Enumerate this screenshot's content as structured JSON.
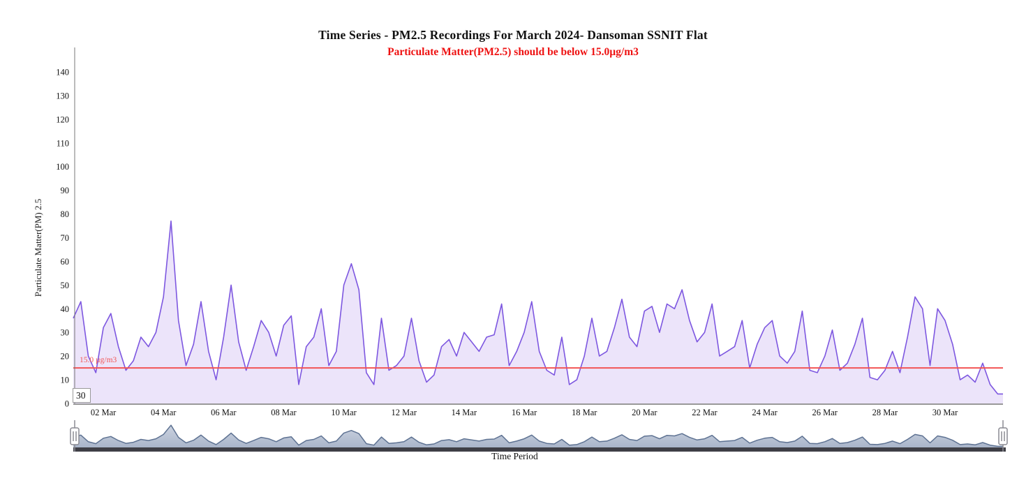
{
  "chart": {
    "title": "Time Series - PM2.5 Recordings For March 2024- Dansoman SSNIT Flat",
    "subtitle": "Particulate Matter(PM2.5) should be below 15.0µg/m3",
    "y_axis_title": "Particulate Matter(PM) 2.5",
    "x_axis_title": "Time Period",
    "corner_label": "30",
    "threshold": {
      "value": 15.0,
      "label": "15.0 µg/m3"
    },
    "colors": {
      "series_line": "#7d57e0",
      "series_fill": "#ece4fa",
      "threshold": "#f25555",
      "subtitle": "#ee1111",
      "navigator_line": "#5e7292",
      "navigator_fill_top": "#ccd3e0",
      "navigator_fill_bottom": "#a9b5ca",
      "navigator_baseline": "#3f3f46",
      "handle_border": "#8a8a92",
      "axis_line": "#999999",
      "tick_text": "#111111"
    }
  },
  "chart_data": {
    "type": "area",
    "title": "Time Series - PM2.5 Recordings For March 2024- Dansoman SSNIT Flat",
    "subtitle": "Particulate Matter(PM2.5) should be below 15.0µg/m3",
    "xlabel": "Time Period",
    "ylabel": "Particulate Matter(PM) 2.5",
    "unit": "µg/m3",
    "x_start": "2024-03-01T00:00",
    "interval_hours": 6,
    "ylim": [
      0,
      150
    ],
    "y_ticks": [
      0,
      10,
      20,
      30,
      40,
      50,
      60,
      70,
      80,
      90,
      100,
      110,
      120,
      130,
      140
    ],
    "x_ticks": [
      {
        "day": 1,
        "label": "02 Mar"
      },
      {
        "day": 3,
        "label": "04 Mar"
      },
      {
        "day": 5,
        "label": "06 Mar"
      },
      {
        "day": 7,
        "label": "08 Mar"
      },
      {
        "day": 9,
        "label": "10 Mar"
      },
      {
        "day": 11,
        "label": "12 Mar"
      },
      {
        "day": 13,
        "label": "14 Mar"
      },
      {
        "day": 15,
        "label": "16 Mar"
      },
      {
        "day": 17,
        "label": "18 Mar"
      },
      {
        "day": 19,
        "label": "20 Mar"
      },
      {
        "day": 21,
        "label": "22 Mar"
      },
      {
        "day": 23,
        "label": "24 Mar"
      },
      {
        "day": 25,
        "label": "26 Mar"
      },
      {
        "day": 27,
        "label": "28 Mar"
      },
      {
        "day": 29,
        "label": "30 Mar"
      }
    ],
    "threshold": 15.0,
    "grid": false,
    "legend": "none",
    "navigator": true,
    "values": [
      36,
      43,
      20,
      13,
      32,
      38,
      24,
      14,
      18,
      28,
      24,
      30,
      45,
      77,
      35,
      16,
      25,
      43,
      22,
      10,
      28,
      50,
      26,
      14,
      24,
      35,
      30,
      20,
      33,
      37,
      8,
      24,
      28,
      40,
      16,
      22,
      50,
      59,
      48,
      13,
      8,
      36,
      14,
      16,
      20,
      36,
      18,
      9,
      12,
      24,
      27,
      20,
      30,
      26,
      22,
      28,
      29,
      42,
      16,
      22,
      30,
      43,
      22,
      14,
      12,
      28,
      8,
      10,
      20,
      36,
      20,
      22,
      32,
      44,
      28,
      24,
      39,
      41,
      30,
      42,
      40,
      48,
      35,
      26,
      30,
      42,
      20,
      22,
      24,
      35,
      15,
      25,
      32,
      35,
      20,
      17,
      22,
      39,
      14,
      13,
      20,
      31,
      14,
      17,
      25,
      36,
      11,
      10,
      14,
      22,
      13,
      28,
      45,
      40,
      16,
      40,
      35,
      25,
      10,
      12,
      9,
      17,
      8,
      4
    ]
  }
}
